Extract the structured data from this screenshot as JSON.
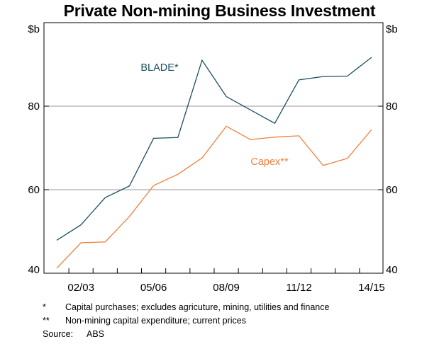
{
  "chart_data": {
    "type": "line",
    "title": "Private Non-mining Business Investment",
    "y_unit_left": "$b",
    "y_unit_right": "$b",
    "ylim": [
      40,
      100
    ],
    "yticks": [
      40,
      60,
      80
    ],
    "grid": true,
    "x_tick_labels": [
      "02/03",
      "05/06",
      "08/09",
      "11/12",
      "14/15"
    ],
    "x": [
      "2001/02",
      "2002/03",
      "2003/04",
      "2004/05",
      "2005/06",
      "2006/07",
      "2007/08",
      "2008/09",
      "2009/10",
      "2010/11",
      "2011/12",
      "2012/13",
      "2013/14",
      "2014/15"
    ],
    "series": [
      {
        "name": "BLADE*",
        "color": "#1b4f60",
        "values": [
          47.9,
          51.6,
          58.1,
          60.9,
          72.3,
          72.5,
          91.0,
          82.3,
          79.1,
          75.9,
          86.3,
          87.1,
          87.2,
          91.7
        ]
      },
      {
        "name": "Capex**",
        "color": "#f0803c",
        "values": [
          41.2,
          47.3,
          47.5,
          53.6,
          61.0,
          63.7,
          67.6,
          75.2,
          72.0,
          72.6,
          72.9,
          65.8,
          67.5,
          74.4
        ]
      }
    ]
  },
  "notes": [
    {
      "mark": "*",
      "text": "Capital purchases; excludes agricuture, mining, utilities and finance"
    },
    {
      "mark": "**",
      "text": "Non-mining capital expenditure; current prices"
    },
    {
      "mark": "Source:",
      "text": "ABS"
    }
  ]
}
